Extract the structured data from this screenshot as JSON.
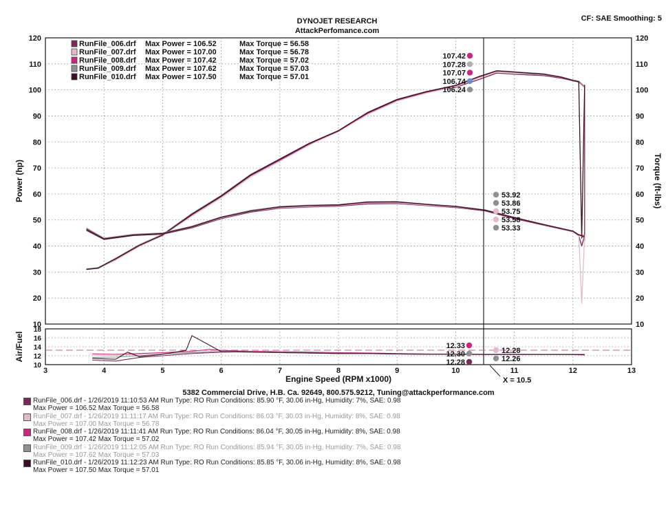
{
  "header": {
    "title": "DYNOJET RESEARCH",
    "subtitle": "AttackPerfomance.com",
    "settings": "CF: SAE  Smoothing: 5"
  },
  "footer": {
    "address": "5382 Commercial Drive, H.B. Ca. 92649, 800.575.9212, Tuning@attackperformance.com",
    "cursor_label": "X = 10.5"
  },
  "colors": {
    "run_006": "#7a2a55",
    "run_007": "#e3b9cc",
    "run_008": "#c8287e",
    "run_009": "#909090",
    "run_010": "#3a0f26",
    "cursor": "#222222",
    "grid": "#888888"
  },
  "legend": [
    {
      "file": "RunFile_006.drf",
      "max_power_label": "Max Power = 106.52",
      "max_torque_label": "Max Torque = 56.58"
    },
    {
      "file": "RunFile_007.drf",
      "max_power_label": "Max Power = 107.00",
      "max_torque_label": "Max Torque = 56.78"
    },
    {
      "file": "RunFile_008.drf",
      "max_power_label": "Max Power = 107.42",
      "max_torque_label": "Max Torque = 57.02"
    },
    {
      "file": "RunFile_009.drf",
      "max_power_label": "Max Power = 107.62",
      "max_torque_label": "Max Torque = 57.03"
    },
    {
      "file": "RunFile_010.drf",
      "max_power_label": "Max Power = 107.50",
      "max_torque_label": "Max Torque = 57.01"
    }
  ],
  "runs": [
    {
      "line1": "RunFile_006.drf - 1/26/2019 11:10:53 AM  Run Type: RO  Run Conditions: 85.90 °F, 30.06 in-Hg,  Humidity:  7%, SAE: 0.98",
      "line2": "Max Power = 106.52  Max Torque = 56.58",
      "color": "#7a2a55",
      "faint": false
    },
    {
      "line1": "RunFile_007.drf - 1/26/2019 11:11:17 AM  Run Type: RO  Run Conditions: 86.03 °F, 30.03 in-Hg,  Humidity:  8%, SAE: 0.98",
      "line2": "Max Power = 107.00  Max Torque = 56.78",
      "color": "#e3b9cc",
      "faint": true
    },
    {
      "line1": "RunFile_008.drf - 1/26/2019 11:11:41 AM  Run Type: RO  Run Conditions: 86.04 °F, 30.05 in-Hg,  Humidity:  8%, SAE: 0.98",
      "line2": "Max Power = 107.42  Max Torque = 57.02",
      "color": "#c8287e",
      "faint": false
    },
    {
      "line1": "RunFile_009.drf - 1/26/2019 11:12:05 AM  Run Type: RO  Run Conditions: 85.94 °F, 30.05 in-Hg,  Humidity:  7%, SAE: 0.98",
      "line2": "Max Power = 107.62  Max Torque = 57.03",
      "color": "#909090",
      "faint": true
    },
    {
      "line1": "RunFile_010.drf - 1/26/2019 11:12:23 AM  Run Type: RO  Run Conditions: 85.85 °F, 30.06 in-Hg,  Humidity:  8%, SAE: 0.98",
      "line2": "Max Power = 107.50  Max Torque = 57.01",
      "color": "#3a0f26",
      "faint": false
    }
  ],
  "chart_data": {
    "type": "line",
    "title": "DYNOJET RESEARCH",
    "xlabel": "Engine Speed (RPM x1000)",
    "ylabel": "Power (hp)",
    "y2label": "Torque (ft-lbs)",
    "afr_label": "Air/Fuel",
    "xlim": [
      3,
      13
    ],
    "ylim": [
      10,
      120
    ],
    "y2lim": [
      10,
      120
    ],
    "afr_ylim": [
      10,
      18
    ],
    "x_ticks": [
      "3",
      "4",
      "5",
      "6",
      "7",
      "8",
      "9",
      "10",
      "11",
      "12",
      "13"
    ],
    "y_ticks": [
      "120",
      "110",
      "100",
      "90",
      "80",
      "70",
      "60",
      "50",
      "40",
      "30",
      "20",
      "10"
    ],
    "y2_ticks": [
      "120",
      "110",
      "100",
      "90",
      "80",
      "70",
      "60",
      "50",
      "40",
      "30",
      "20",
      "10"
    ],
    "afr_ticks": [
      "18",
      "16",
      "14",
      "12",
      "10"
    ],
    "grid": true,
    "legend_position": "top-left",
    "cursor_x": 10.5,
    "cursor_readouts": {
      "power": [
        "107.42",
        "107.28",
        "107.07",
        "106.74",
        "106.24"
      ],
      "power_colors": [
        "#c8287e",
        "#b0b0b0",
        "#c8287e",
        "#6b8fc7",
        "#909090"
      ],
      "torque": [
        "53.92",
        "53.86",
        "53.75",
        "53.58",
        "53.33"
      ],
      "torque_colors": [
        "#909090",
        "#909090",
        "#e3b9cc",
        "#e3b9cc",
        "#909090"
      ],
      "afr_left": [
        "12.33",
        "12.30",
        "12.28"
      ],
      "afr_left_colors": [
        "#c8287e",
        "#909090",
        "#7a2a55"
      ],
      "afr_right": [
        "12.28",
        "12.26"
      ],
      "afr_right_colors": [
        "#e3b9cc",
        "#909090"
      ]
    },
    "series": [
      {
        "name": "RunFile_006.drf Power",
        "color": "#7a2a55",
        "x": [
          3.7,
          3.9,
          4.2,
          4.6,
          5.0,
          5.5,
          6.0,
          6.5,
          7.0,
          7.5,
          8.0,
          8.5,
          9.0,
          9.5,
          10.0,
          10.4,
          10.7,
          11.0,
          11.5,
          11.8,
          12.0,
          12.1,
          12.2,
          12.2
        ],
        "y": [
          31,
          31.5,
          35,
          40,
          44,
          52,
          59,
          67,
          73,
          79,
          84,
          91,
          96,
          99,
          101,
          104,
          106.5,
          106,
          105.5,
          104.5,
          103.5,
          103,
          101,
          42
        ]
      },
      {
        "name": "RunFile_007.drf Power",
        "color": "#e3b9cc",
        "x": [
          3.7,
          3.9,
          4.2,
          4.6,
          5.0,
          5.5,
          6.0,
          6.5,
          7.0,
          7.5,
          8.0,
          8.5,
          9.0,
          9.5,
          10.0,
          10.4,
          10.7,
          11.0,
          11.5,
          11.8,
          12.0,
          12.1,
          12.2
        ],
        "y": [
          31,
          31.3,
          34.6,
          39.8,
          44,
          51.5,
          58.5,
          66.5,
          72.6,
          78.8,
          84,
          90.6,
          95.7,
          98.8,
          101.2,
          104.6,
          107,
          106.6,
          105.8,
          104.8,
          103.6,
          103.2,
          101
        ]
      },
      {
        "name": "RunFile_008.drf Power",
        "color": "#c8287e",
        "x": [
          3.7,
          3.9,
          4.2,
          4.6,
          5.0,
          5.5,
          6.0,
          6.5,
          7.0,
          7.5,
          8.0,
          8.5,
          9.0,
          9.5,
          10.0,
          10.4,
          10.7,
          11.0,
          11.5,
          11.8,
          12.0,
          12.1,
          12.2
        ],
        "y": [
          31.2,
          31.6,
          35.2,
          40.3,
          44.3,
          52.3,
          59.3,
          67.2,
          73.3,
          79.3,
          84.2,
          91.2,
          96.2,
          99.2,
          101.6,
          105,
          107.3,
          106.9,
          106,
          104.9,
          103.7,
          103.3,
          101.2
        ]
      },
      {
        "name": "RunFile_009.drf Power",
        "color": "#909090",
        "x": [
          3.7,
          3.9,
          4.2,
          4.6,
          5.0,
          5.5,
          6.0,
          6.5,
          7.0,
          7.5,
          8.0,
          8.5,
          9.0,
          9.5,
          10.0,
          10.4,
          10.7,
          11.0,
          11.5,
          11.8,
          12.0,
          12.1,
          12.2
        ],
        "y": [
          31.1,
          31.7,
          35.3,
          40.5,
          44.5,
          52.5,
          59.5,
          67.5,
          73.5,
          79.5,
          84.4,
          91.4,
          96.4,
          99.4,
          101.8,
          105.2,
          107.4,
          107,
          106.2,
          105,
          103.8,
          103.4,
          101.3
        ]
      },
      {
        "name": "RunFile_010.drf Power",
        "color": "#3a0f26",
        "x": [
          3.7,
          3.9,
          4.2,
          4.6,
          5.0,
          5.5,
          6.0,
          6.5,
          7.0,
          7.5,
          8.0,
          8.5,
          9.0,
          9.5,
          10.0,
          10.4,
          10.7,
          11.0,
          11.5,
          11.8,
          12.0,
          12.1,
          12.15,
          12.2
        ],
        "y": [
          31,
          31.5,
          35.1,
          40.2,
          44.2,
          52.2,
          59.2,
          67.3,
          73.4,
          79.4,
          84.3,
          91.3,
          96.3,
          99.3,
          101.7,
          105.1,
          107.3,
          106.8,
          106,
          104.9,
          103.6,
          103.1,
          43,
          102
        ]
      },
      {
        "name": "RunFile_006.drf Torque",
        "color": "#7a2a55",
        "x": [
          3.7,
          4.0,
          4.5,
          5.0,
          5.5,
          6.0,
          6.5,
          7.0,
          7.5,
          8.0,
          8.5,
          9.0,
          9.5,
          10.0,
          10.5,
          11.0,
          11.5,
          12.0,
          12.1,
          12.15,
          12.2
        ],
        "y": [
          46,
          42.5,
          44,
          44.5,
          47,
          50.5,
          53,
          54.5,
          55,
          55.3,
          56.2,
          56.3,
          55.5,
          54.8,
          53.5,
          50.5,
          48,
          45.5,
          44,
          40,
          44
        ]
      },
      {
        "name": "RunFile_007.drf Torque",
        "color": "#e3b9cc",
        "x": [
          3.7,
          4.0,
          4.5,
          5.0,
          5.5,
          6.0,
          6.5,
          7.0,
          7.5,
          8.0,
          8.5,
          9.0,
          9.5,
          10.0,
          10.5,
          11.0,
          11.5,
          12.0,
          12.1,
          12.15,
          12.2
        ],
        "y": [
          47,
          43,
          44.2,
          44.8,
          47.3,
          50.8,
          53.3,
          54.7,
          55.2,
          55.5,
          56.5,
          56.6,
          55.7,
          55,
          53.8,
          50.8,
          48.2,
          45.6,
          44.2,
          18,
          44
        ]
      },
      {
        "name": "RunFile_008.drf Torque",
        "color": "#c8287e",
        "x": [
          3.7,
          4.0,
          4.5,
          5.0,
          5.5,
          6.0,
          6.5,
          7.0,
          7.5,
          8.0,
          8.5,
          9.0,
          9.5,
          10.0,
          10.5,
          11.0,
          11.5,
          12.0,
          12.1,
          12.2
        ],
        "y": [
          46.5,
          42.8,
          44.3,
          44.9,
          47.5,
          51,
          53.5,
          55,
          55.5,
          55.7,
          56.8,
          56.9,
          56,
          55.2,
          53.8,
          50.8,
          48.2,
          45.7,
          44.3,
          44
        ]
      },
      {
        "name": "RunFile_009.drf Torque",
        "color": "#909090",
        "x": [
          3.7,
          4.0,
          4.5,
          5.0,
          5.5,
          6.0,
          6.5,
          7.0,
          7.5,
          8.0,
          8.5,
          9.0,
          9.5,
          10.0,
          10.5,
          11.0,
          11.5,
          12.0,
          12.1,
          12.2
        ],
        "y": [
          46.8,
          43,
          44.5,
          45,
          47.6,
          51.2,
          53.7,
          55.2,
          55.7,
          55.9,
          57,
          57,
          56.1,
          55.3,
          53.9,
          51,
          48.3,
          45.8,
          44.4,
          43
        ]
      },
      {
        "name": "RunFile_010.drf Torque",
        "color": "#3a0f26",
        "x": [
          3.7,
          4.0,
          4.5,
          5.0,
          5.5,
          6.0,
          6.5,
          7.0,
          7.5,
          8.0,
          8.5,
          9.0,
          9.5,
          10.0,
          10.5,
          11.0,
          11.5,
          12.0,
          12.1,
          12.2
        ],
        "y": [
          46.4,
          42.7,
          44.2,
          44.8,
          47.4,
          51,
          53.4,
          55,
          55.5,
          55.8,
          56.9,
          57,
          56,
          55.2,
          53.8,
          50.9,
          48.3,
          45.7,
          44.3,
          43.5
        ]
      }
    ],
    "afr_series": [
      {
        "name": "RunFile_006.drf AFR",
        "color": "#7a2a55",
        "x": [
          3.8,
          4.2,
          4.6,
          5.0,
          5.5,
          6.0,
          6.5,
          7.0,
          7.5,
          8.0,
          8.5,
          9.0,
          9.5,
          10.0,
          10.5,
          11.0,
          11.5,
          12.0,
          12.2
        ],
        "y": [
          11.0,
          10.8,
          11.6,
          12.0,
          12.5,
          12.8,
          12.9,
          12.7,
          12.6,
          12.5,
          12.5,
          12.4,
          12.3,
          12.3,
          12.28,
          12.3,
          12.3,
          12.3,
          12.2
        ]
      },
      {
        "name": "RunFile_007.drf AFR",
        "color": "#e3b9cc",
        "x": [
          3.8,
          4.2,
          4.6,
          5.0,
          5.5,
          6.0,
          6.5,
          7.0,
          7.5,
          8.0,
          8.5,
          9.0,
          9.5,
          10.0,
          10.5,
          11.0,
          11.5,
          12.0,
          12.2
        ],
        "y": [
          12.0,
          12.1,
          12.3,
          12.6,
          12.8,
          13.0,
          13.0,
          12.8,
          12.7,
          12.6,
          12.6,
          12.5,
          12.4,
          12.35,
          12.3,
          12.3,
          12.3,
          12.2,
          12.2
        ]
      },
      {
        "name": "RunFile_008.drf AFR",
        "color": "#c8287e",
        "x": [
          3.8,
          4.2,
          4.6,
          5.0,
          5.5,
          5.8,
          6.0,
          6.5,
          7.0,
          7.5,
          8.0,
          8.5,
          9.0,
          9.5,
          10.0,
          10.5,
          11.0,
          11.5,
          12.0,
          12.2
        ],
        "y": [
          12.4,
          12.3,
          12.5,
          12.7,
          13.0,
          13.4,
          13.2,
          13.0,
          12.9,
          12.8,
          12.7,
          12.6,
          12.5,
          12.4,
          12.35,
          12.33,
          12.33,
          12.3,
          12.3,
          12.3
        ]
      },
      {
        "name": "RunFile_009.drf AFR",
        "color": "#909090",
        "x": [
          3.8,
          4.2,
          4.6,
          5.0,
          5.5,
          6.0,
          6.5,
          7.0,
          7.5,
          8.0,
          8.5,
          9.0,
          9.5,
          10.0,
          10.5,
          11.0,
          11.5,
          12.0,
          12.2
        ],
        "y": [
          11.6,
          11.7,
          12.0,
          12.4,
          12.7,
          12.9,
          12.9,
          12.7,
          12.6,
          12.55,
          12.5,
          12.45,
          12.35,
          12.3,
          12.3,
          12.26,
          12.26,
          12.25,
          12.2
        ]
      },
      {
        "name": "RunFile_010.drf AFR",
        "color": "#3a0f26",
        "x": [
          3.8,
          4.2,
          4.4,
          4.6,
          5.0,
          5.4,
          5.5,
          6.0,
          6.5,
          7.0,
          7.5,
          8.0,
          8.5,
          9.0,
          9.5,
          10.0,
          10.5,
          11.0,
          11.5,
          12.0,
          12.2
        ],
        "y": [
          11.4,
          11.2,
          12.8,
          11.8,
          12.3,
          13.2,
          16.5,
          12.9,
          12.8,
          12.7,
          12.6,
          12.5,
          12.5,
          12.4,
          12.3,
          12.3,
          12.28,
          12.28,
          12.28,
          12.27,
          12.2
        ]
      }
    ]
  }
}
